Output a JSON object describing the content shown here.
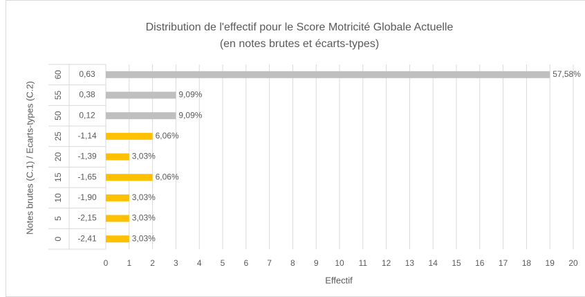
{
  "chart_data": {
    "type": "barh",
    "title": "Distribution de l'effectif pour le Score Motricité Globale Actuelle",
    "subtitle": "(en notes brutes et écarts-types)",
    "x_label": "Effectif",
    "y_label": "Notes brutes (C.1) / Ecarts-types (C.2)",
    "categories": [
      "60",
      "55",
      "50",
      "25",
      "20",
      "15",
      "10",
      "5",
      "0"
    ],
    "sub_categories": [
      "0,63",
      "0,38",
      "0,12",
      "-1,14",
      "-1,39",
      "-1,65",
      "-1,90",
      "-2,15",
      "-2,41"
    ],
    "values": [
      19,
      3,
      3,
      2,
      1,
      2,
      1,
      1,
      1
    ],
    "value_labels": [
      "57,58%",
      "9,09%",
      "9,09%",
      "6,06%",
      "3,03%",
      "6,06%",
      "3,03%",
      "3,03%",
      "3,03%"
    ],
    "colors": [
      "#bfbfbf",
      "#bfbfbf",
      "#bfbfbf",
      "#ffc000",
      "#ffc000",
      "#ffc000",
      "#ffc000",
      "#ffc000",
      "#ffc000"
    ],
    "xlim": [
      0,
      20
    ],
    "xticks": [
      0,
      1,
      2,
      3,
      4,
      5,
      6,
      7,
      8,
      9,
      10,
      11,
      12,
      13,
      14,
      15,
      16,
      17,
      18,
      19,
      20
    ],
    "grid": true
  }
}
